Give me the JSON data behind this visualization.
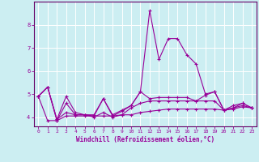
{
  "xlabel": "Windchill (Refroidissement éolien,°C)",
  "bg_color": "#cceef2",
  "grid_color": "#ffffff",
  "line_color": "#990099",
  "spine_color": "#660066",
  "xlim": [
    -0.5,
    23.5
  ],
  "ylim": [
    3.6,
    9.0
  ],
  "yticks": [
    4,
    5,
    6,
    7,
    8
  ],
  "xticks": [
    0,
    1,
    2,
    3,
    4,
    5,
    6,
    7,
    8,
    9,
    10,
    11,
    12,
    13,
    14,
    15,
    16,
    17,
    18,
    19,
    20,
    21,
    22,
    23
  ],
  "series": [
    {
      "x": [
        0,
        1,
        2,
        3,
        4,
        5,
        6,
        7,
        8,
        9,
        10,
        11,
        12,
        13,
        14,
        15,
        16,
        17,
        18,
        19,
        20,
        21,
        22,
        23
      ],
      "y": [
        4.9,
        5.3,
        3.9,
        4.9,
        4.2,
        4.1,
        4.1,
        4.8,
        4.1,
        4.3,
        4.5,
        5.1,
        8.6,
        6.5,
        7.4,
        7.4,
        6.7,
        6.3,
        5.0,
        5.1,
        4.3,
        4.5,
        4.6,
        4.4
      ]
    },
    {
      "x": [
        0,
        1,
        2,
        3,
        4,
        5,
        6,
        7,
        8,
        9,
        10,
        11,
        12,
        13,
        14,
        15,
        16,
        17,
        18,
        19,
        20,
        21,
        22,
        23
      ],
      "y": [
        4.9,
        5.3,
        3.9,
        4.2,
        4.1,
        4.1,
        4.0,
        4.2,
        4.0,
        4.1,
        4.4,
        4.6,
        4.7,
        4.7,
        4.7,
        4.7,
        4.7,
        4.7,
        4.7,
        4.7,
        4.3,
        4.4,
        4.5,
        4.4
      ]
    },
    {
      "x": [
        0,
        1,
        2,
        3,
        4,
        5,
        6,
        7,
        8,
        9,
        10,
        11,
        12,
        13,
        14,
        15,
        16,
        17,
        18,
        19,
        20,
        21,
        22,
        23
      ],
      "y": [
        4.9,
        3.85,
        3.85,
        4.05,
        4.05,
        4.05,
        4.05,
        4.05,
        4.05,
        4.1,
        4.1,
        4.2,
        4.25,
        4.3,
        4.35,
        4.35,
        4.35,
        4.35,
        4.35,
        4.35,
        4.3,
        4.35,
        4.45,
        4.4
      ]
    },
    {
      "x": [
        0,
        1,
        2,
        3,
        4,
        5,
        6,
        7,
        8,
        9,
        10,
        11,
        12,
        13,
        14,
        15,
        16,
        17,
        18,
        19,
        20,
        21,
        22,
        23
      ],
      "y": [
        4.9,
        5.3,
        3.85,
        4.6,
        4.1,
        4.1,
        4.05,
        4.8,
        4.05,
        4.25,
        4.5,
        5.1,
        4.8,
        4.85,
        4.85,
        4.85,
        4.85,
        4.7,
        4.95,
        5.1,
        4.3,
        4.4,
        4.6,
        4.4
      ]
    }
  ]
}
